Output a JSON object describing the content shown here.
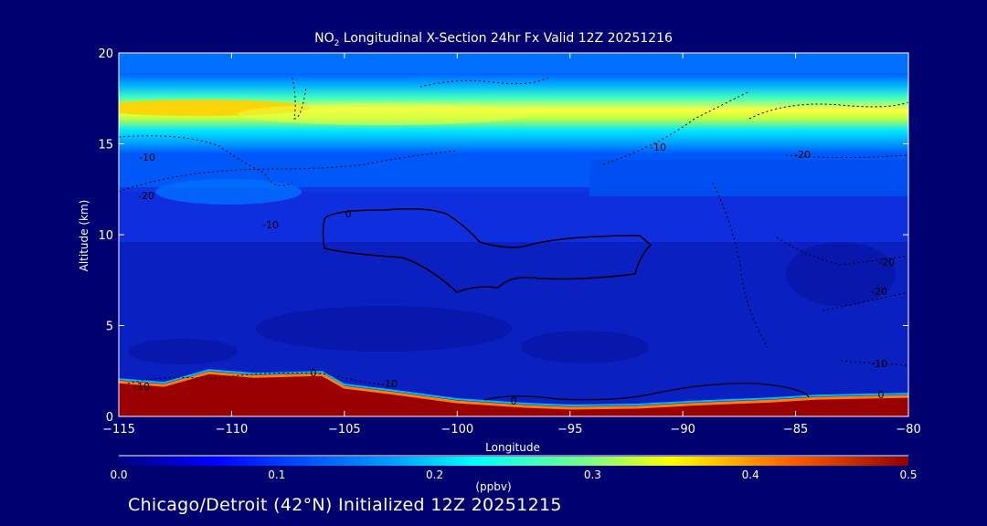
{
  "chart_data": {
    "type": "heatmap",
    "title_prefix": "NO",
    "title_sub": "2",
    "title_suffix": " Longitudinal X-Section 24hr  Fx Valid 12Z 20251216",
    "xlabel": "Longitude",
    "ylabel": "Altitude (km)",
    "xlim": [
      -115,
      -80
    ],
    "ylim": [
      0,
      20
    ],
    "xticks": [
      -115,
      -110,
      -105,
      -100,
      -95,
      -90,
      -85,
      -80
    ],
    "yticks": [
      0,
      5,
      10,
      15,
      20
    ],
    "colorbar": {
      "label": "(ppbv)",
      "range": [
        0.0,
        0.5
      ],
      "ticks": [
        "0.0",
        "0.1",
        "0.2",
        "0.3",
        "0.4",
        "0.5"
      ]
    },
    "contour_labels": [
      "-10",
      "-20",
      "-10",
      "0",
      "0",
      "-10",
      "-10",
      "-20",
      "-20",
      "-20",
      "-10",
      "-10",
      "0",
      "0"
    ],
    "terrain_km": [
      [
        -115,
        1.9
      ],
      [
        -113,
        1.7
      ],
      [
        -111,
        2.4
      ],
      [
        -109,
        2.2
      ],
      [
        -106,
        2.3
      ],
      [
        -105,
        1.6
      ],
      [
        -103,
        1.3
      ],
      [
        -100,
        0.8
      ],
      [
        -97,
        0.55
      ],
      [
        -95,
        0.45
      ],
      [
        -92,
        0.5
      ],
      [
        -89,
        0.7
      ],
      [
        -86,
        0.85
      ],
      [
        -84,
        1.0
      ],
      [
        -80,
        1.1
      ]
    ],
    "layers": [
      {
        "alt": [
          13.5,
          14.5
        ],
        "value": 0.14
      },
      {
        "alt": [
          14.5,
          15.5
        ],
        "value": 0.19
      },
      {
        "alt": [
          15.5,
          17.8
        ],
        "value": 0.23
      },
      {
        "alt": [
          16.6,
          17.3
        ],
        "value": 0.3
      },
      {
        "alt": [
          12,
          13.5
        ],
        "value": 0.1
      },
      {
        "alt": [
          0,
          11
        ],
        "value": 0.05
      }
    ],
    "max_near_surface": 0.5
  },
  "footer_text": "Chicago/Detroit (42°N) Initialized 12Z 20251215"
}
